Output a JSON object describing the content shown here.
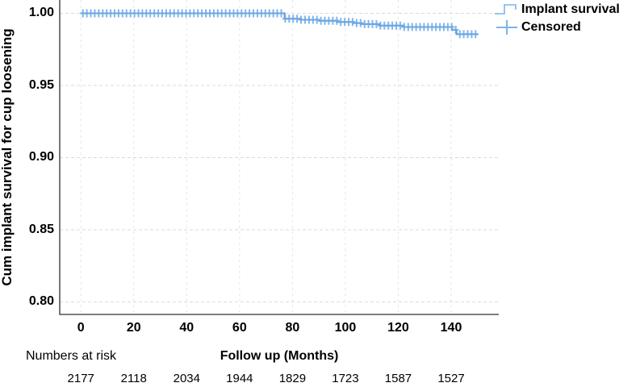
{
  "chart_data": {
    "type": "line",
    "subtype": "kaplan-meier-step-survival",
    "title": "",
    "ylabel": "Cum implant survival for cup loosening",
    "xlabel": "Follow up (Months)",
    "grid": "dashed-both-axes",
    "xlim": [
      -8,
      158
    ],
    "ylim": [
      0.7913,
      1.0092
    ],
    "x_tick_values": [
      0,
      20,
      40,
      60,
      80,
      100,
      120,
      140
    ],
    "x_tick_labels": [
      "0",
      "20",
      "40",
      "60",
      "80",
      "100",
      "120",
      "140"
    ],
    "y_tick_values": [
      1.0,
      0.95,
      0.9,
      0.85,
      0.8
    ],
    "y_tick_labels": [
      "1.00",
      "0.95",
      "0.90",
      "0.85",
      "0.80"
    ],
    "legend": {
      "position": "top-right",
      "entries": [
        {
          "label": "Implant survival",
          "symbol": "step-line"
        },
        {
          "label": "Censored",
          "symbol": "plus"
        }
      ]
    },
    "series": [
      {
        "name": "Implant survival",
        "levels": [
          {
            "from": 0,
            "to": 77,
            "v": 1.0
          },
          {
            "from": 77,
            "to": 83,
            "v": 0.9962
          },
          {
            "from": 83,
            "to": 90,
            "v": 0.9955
          },
          {
            "from": 90,
            "to": 97,
            "v": 0.9948
          },
          {
            "from": 97,
            "to": 103,
            "v": 0.994
          },
          {
            "from": 103,
            "to": 106,
            "v": 0.9932
          },
          {
            "from": 106,
            "to": 113,
            "v": 0.9925
          },
          {
            "from": 113,
            "to": 122,
            "v": 0.9915
          },
          {
            "from": 122,
            "to": 140.3,
            "v": 0.9905
          },
          {
            "from": 140.3,
            "to": 142,
            "v": 0.9885
          },
          {
            "from": 142,
            "to": 150.3,
            "v": 0.9855
          }
        ]
      }
    ],
    "censored_months": [
      0.75,
      2.25,
      3.75,
      5.25,
      6.75,
      8.25,
      9.75,
      11.25,
      12.75,
      14.25,
      15.75,
      17.25,
      18.75,
      20.25,
      21.75,
      23.25,
      24.75,
      26.25,
      27.75,
      29.25,
      30.75,
      32.25,
      33.75,
      35.25,
      36.75,
      38.25,
      39.75,
      41.25,
      42.75,
      44.25,
      45.75,
      47.25,
      48.75,
      50.25,
      51.75,
      53.25,
      54.75,
      56.25,
      57.75,
      59.25,
      60.75,
      62.25,
      63.75,
      65.25,
      66.75,
      68.25,
      69.75,
      71.25,
      72.75,
      74.25,
      75.75,
      77.25,
      78.75,
      80.25,
      81.75,
      83.25,
      84.75,
      86.25,
      87.75,
      89.25,
      90.75,
      92.25,
      93.75,
      95.25,
      96.75,
      98.25,
      99.75,
      101.25,
      102.75,
      104.25,
      105.75,
      107.25,
      108.75,
      110.25,
      111.75,
      113.25,
      114.75,
      116.25,
      117.75,
      119.25,
      120.75,
      122.25,
      123.75,
      125.25,
      126.75,
      128.25,
      129.75,
      131.25,
      132.75,
      134.25,
      135.75,
      137.25,
      138.75,
      140.25,
      141.75,
      143.25,
      144.75,
      146.25,
      147.75,
      149.25
    ],
    "numbers_at_risk": {
      "label": "Numbers at risk",
      "months": [
        0,
        20,
        40,
        60,
        80,
        100,
        120,
        140
      ],
      "counts": [
        "2177",
        "2118",
        "2034",
        "1944",
        "1829",
        "1723",
        "1587",
        "1527"
      ]
    },
    "colors": {
      "curve_line": "#4f94dd",
      "censor_mark": "#6fa9e5",
      "legend_icon": "#7db4ea",
      "axis": "#26303c",
      "grid_horizontal": "#d7dbde",
      "grid_vertical": "#e2e5e8",
      "text": "#000000"
    }
  }
}
